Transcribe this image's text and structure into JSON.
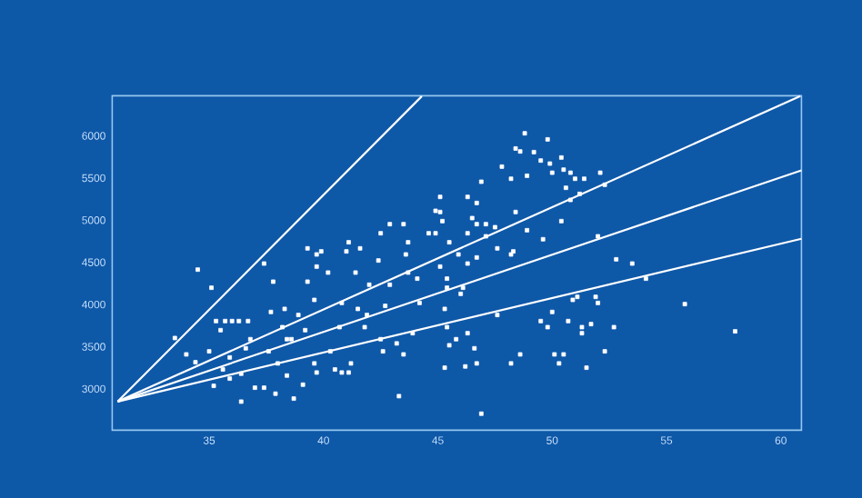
{
  "chart_data": {
    "type": "scatter",
    "xlim": [
      30.76,
      60.9
    ],
    "ylim": [
      2510,
      6475
    ],
    "xticks": [
      35,
      40,
      45,
      50,
      55,
      60
    ],
    "yticks": [
      3000,
      3500,
      4000,
      4500,
      5000,
      5500,
      6000
    ],
    "grid": false,
    "series": [
      {
        "color": "#ffffff",
        "marker": "square",
        "x": [
          33.5,
          34.5,
          35.1,
          34.0,
          34.4,
          35.0,
          35.2,
          35.3,
          35.7,
          36.0,
          36.3,
          36.7,
          35.5,
          35.6,
          35.9,
          36.4,
          36.4,
          35.9,
          36.6,
          36.8,
          37.0,
          37.4,
          37.4,
          37.8,
          37.7,
          38.0,
          38.4,
          37.9,
          38.7,
          38.2,
          38.3,
          38.6,
          38.9,
          39.1,
          39.2,
          39.3,
          39.3,
          39.7,
          39.9,
          39.7,
          39.6,
          39.6,
          39.7,
          40.3,
          40.2,
          40.5,
          40.8,
          41.1,
          41.2,
          41.0,
          41.1,
          41.4,
          41.6,
          41.8,
          41.5,
          42.0,
          42.4,
          42.5,
          42.9,
          42.9,
          42.7,
          42.5,
          42.6,
          43.5,
          43.7,
          43.6,
          43.7,
          44.1,
          44.2,
          43.9,
          43.5,
          43.3,
          43.2,
          44.6,
          45.1,
          40.8,
          40.7,
          41.9,
          38.4,
          37.6,
          45.1,
          44.9,
          45.2,
          46.3,
          44.9,
          45.5,
          46.3,
          46.7,
          46.5,
          46.7,
          47.1,
          47.5,
          46.9,
          47.8,
          48.4,
          48.8,
          48.6,
          48.2,
          48.9,
          49.2,
          49.8,
          49.5,
          49.9,
          50.4,
          50.0,
          50.5,
          50.8,
          51.0,
          51.4,
          52.1,
          52.3,
          50.8,
          51.2,
          50.6,
          50.4,
          48.4,
          48.2,
          48.3,
          48.9,
          49.6,
          47.1,
          45.1,
          45.4,
          46.1,
          46.0,
          45.4,
          46.3,
          46.7,
          47.6,
          45.9,
          45.3,
          45.4,
          45.5,
          45.8,
          46.3,
          45.3,
          46.2,
          46.7,
          46.6,
          47.6,
          46.9,
          48.2,
          48.6,
          49.5,
          49.8,
          50.0,
          50.1,
          50.3,
          50.5,
          50.7,
          50.9,
          51.1,
          51.3,
          51.3,
          51.5,
          51.7,
          51.9,
          52.0,
          52.3,
          52.7,
          52.0,
          52.8,
          53.5,
          54.1,
          55.8,
          58.0
        ],
        "values": [
          3603,
          4414,
          4199,
          3409,
          3316,
          3445,
          3036,
          3804,
          3804,
          3804,
          3804,
          3804,
          3696,
          3230,
          3122,
          3180,
          2849,
          3373,
          3481,
          3589,
          3014,
          3014,
          4486,
          4271,
          3912,
          3302,
          3158,
          2943,
          2885,
          3732,
          3948,
          3589,
          3876,
          3050,
          3696,
          4271,
          4666,
          4594,
          4630,
          4450,
          4055,
          3302,
          3194,
          3445,
          4379,
          3230,
          3194,
          3194,
          3302,
          4630,
          4738,
          4379,
          4666,
          3732,
          3948,
          4235,
          4522,
          4845,
          4953,
          4235,
          3984,
          3589,
          3445,
          4953,
          4738,
          4594,
          4379,
          4307,
          4019,
          3660,
          3409,
          2914,
          3539,
          4845,
          5097,
          4019,
          3732,
          3876,
          3589,
          3445,
          5276,
          5111,
          4989,
          5276,
          4845,
          4738,
          4845,
          5204,
          5025,
          4953,
          4953,
          4917,
          5456,
          5635,
          5850,
          6030,
          5815,
          5491,
          5527,
          5807,
          5958,
          5707,
          5671,
          5743,
          5563,
          5599,
          5563,
          5491,
          5491,
          5563,
          5420,
          5240,
          5312,
          5384,
          4989,
          5097,
          4594,
          4630,
          4881,
          4774,
          4809,
          4450,
          4199,
          4199,
          4127,
          4307,
          4486,
          4558,
          4666,
          4594,
          3948,
          3732,
          3517,
          3589,
          3660,
          3251,
          3266,
          3302,
          3481,
          3876,
          2706,
          3302,
          3409,
          3804,
          3732,
          3912,
          3409,
          3302,
          3409,
          3804,
          4055,
          4091,
          3732,
          3660,
          3251,
          3768,
          4091,
          4019,
          3445,
          3732,
          4809,
          4536,
          4486,
          4307,
          4005,
          3682
        ]
      },
      {
        "type": "line",
        "marker": "none",
        "color": "#ffffff",
        "x": [
          31.0,
          44.3
        ],
        "values": [
          2850,
          6470
        ]
      },
      {
        "type": "line",
        "marker": "none",
        "color": "#ffffff",
        "x": [
          31.0,
          60.85
        ],
        "values": [
          2850,
          6470
        ]
      },
      {
        "type": "line",
        "marker": "none",
        "color": "#ffffff",
        "x": [
          31.0,
          60.9
        ],
        "values": [
          2850,
          5590
        ]
      },
      {
        "type": "line",
        "marker": "none",
        "color": "#ffffff",
        "x": [
          31.0,
          60.9
        ],
        "values": [
          2850,
          4780
        ]
      }
    ]
  }
}
